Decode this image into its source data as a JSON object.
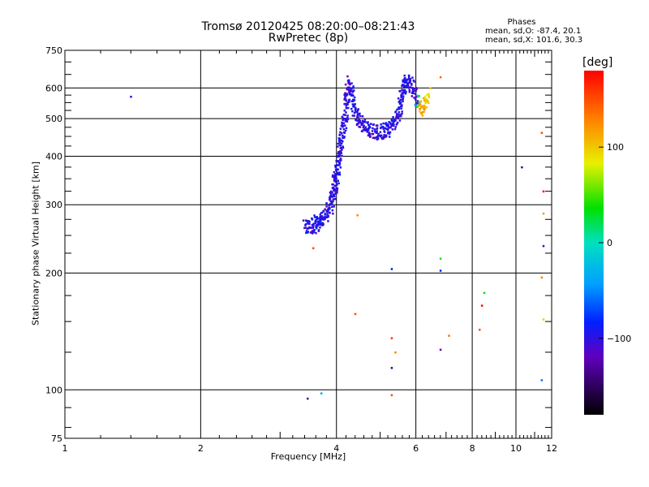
{
  "title": "Tromsø 20120425 08:20:00–08:21:43",
  "subtitle": "RwPretec (8p)",
  "phases": {
    "title": "Phases",
    "stat_o": "mean, sd,O: -87.4, 20.1",
    "stat_x": "mean, sd,X: 101.6, 30.3"
  },
  "colorbar": {
    "unit": "[deg]",
    "range": [
      -180,
      180
    ],
    "ticks": [
      100,
      0,
      -100
    ],
    "tick_labels": [
      "100",
      "0",
      "−100"
    ]
  },
  "chart_data": {
    "type": "scatter",
    "xlabel": "Frequency [MHz]",
    "ylabel": "Stationary phase Virtual Height [km]",
    "xscale": "log",
    "yscale": "log",
    "xlim": [
      1,
      12
    ],
    "ylim": [
      75,
      750
    ],
    "xticks": [
      1,
      2,
      4,
      6,
      8,
      10,
      12
    ],
    "xtick_labels": [
      "1",
      "2",
      "4",
      "6",
      "8",
      "10",
      "12"
    ],
    "yticks": [
      75,
      100,
      200,
      300,
      400,
      500,
      600,
      750
    ],
    "ytick_labels": [
      "75",
      "100",
      "200",
      "300",
      "400",
      "500",
      "600",
      "750"
    ],
    "grid": true,
    "trace": [
      [
        3.42,
        262,
        -100
      ],
      [
        3.48,
        268,
        -95
      ],
      [
        3.55,
        263,
        -105
      ],
      [
        3.6,
        272,
        -98
      ],
      [
        3.65,
        268,
        -92
      ],
      [
        3.7,
        280,
        -102
      ],
      [
        3.75,
        275,
        -96
      ],
      [
        3.8,
        290,
        -108
      ],
      [
        3.85,
        295,
        -100
      ],
      [
        3.9,
        305,
        -95
      ],
      [
        3.92,
        315,
        -104
      ],
      [
        3.95,
        330,
        -99
      ],
      [
        3.97,
        345,
        -110
      ],
      [
        4.0,
        360,
        -93
      ],
      [
        4.02,
        380,
        -101
      ],
      [
        4.05,
        400,
        -97
      ],
      [
        4.08,
        420,
        -105
      ],
      [
        4.1,
        440,
        -100
      ],
      [
        4.15,
        470,
        -95
      ],
      [
        4.18,
        500,
        -102
      ],
      [
        4.2,
        540,
        -98
      ],
      [
        4.22,
        580,
        -106
      ],
      [
        4.25,
        620,
        -115
      ],
      [
        4.3,
        600,
        -100
      ],
      [
        4.35,
        560,
        -92
      ],
      [
        4.4,
        530,
        -102
      ],
      [
        4.45,
        510,
        -97
      ],
      [
        4.5,
        490,
        -105
      ],
      [
        4.6,
        480,
        -100
      ],
      [
        4.7,
        470,
        -95
      ],
      [
        4.8,
        465,
        -108
      ],
      [
        4.9,
        460,
        -98
      ],
      [
        5.0,
        462,
        -103
      ],
      [
        5.1,
        465,
        -96
      ],
      [
        5.2,
        470,
        -101
      ],
      [
        5.3,
        480,
        -99
      ],
      [
        5.4,
        495,
        -104
      ],
      [
        5.5,
        520,
        -97
      ],
      [
        5.55,
        550,
        -100
      ],
      [
        5.6,
        580,
        -108
      ],
      [
        5.65,
        610,
        -95
      ],
      [
        5.7,
        630,
        -102
      ],
      [
        5.8,
        620,
        -98
      ],
      [
        5.9,
        600,
        -100
      ],
      [
        6.0,
        570,
        -120
      ],
      [
        6.1,
        540,
        110
      ],
      [
        6.2,
        520,
        120
      ],
      [
        6.3,
        550,
        100
      ],
      [
        6.4,
        580,
        90
      ]
    ],
    "points": [
      [
        1.4,
        570,
        -100
      ],
      [
        3.55,
        232,
        150
      ],
      [
        3.45,
        95,
        -130
      ],
      [
        3.7,
        98,
        -40
      ],
      [
        4.4,
        157,
        150
      ],
      [
        4.45,
        282,
        130
      ],
      [
        5.3,
        205,
        -85
      ],
      [
        5.3,
        136,
        160
      ],
      [
        5.3,
        114,
        -140
      ],
      [
        5.3,
        97,
        150
      ],
      [
        5.4,
        125,
        130
      ],
      [
        6.8,
        218,
        20
      ],
      [
        6.8,
        127,
        -120
      ],
      [
        6.8,
        203,
        -90
      ],
      [
        7.1,
        138,
        135
      ],
      [
        6.8,
        640,
        140
      ],
      [
        8.4,
        165,
        180
      ],
      [
        8.5,
        178,
        30
      ],
      [
        8.3,
        143,
        150
      ],
      [
        10.3,
        375,
        -135
      ],
      [
        11.4,
        460,
        150
      ],
      [
        11.5,
        325,
        180
      ],
      [
        11.5,
        285,
        120
      ],
      [
        11.5,
        235,
        -120
      ],
      [
        11.4,
        195,
        130
      ],
      [
        11.5,
        152,
        100
      ],
      [
        11.4,
        106,
        -60
      ]
    ]
  }
}
